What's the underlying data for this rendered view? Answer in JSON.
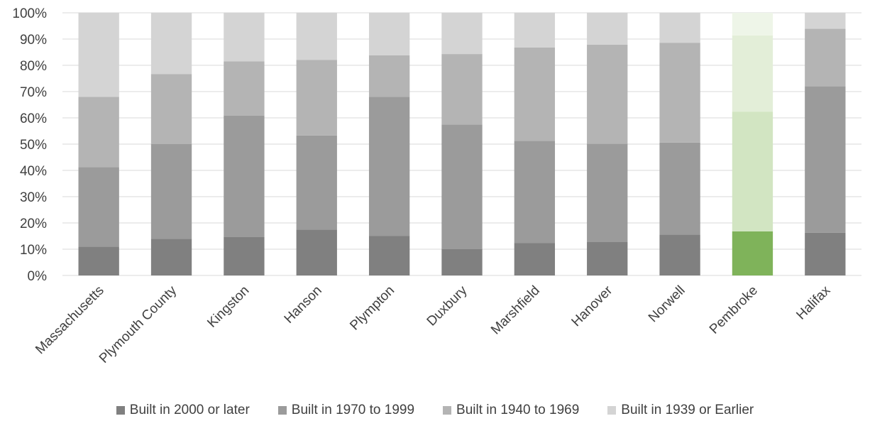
{
  "chart_data": {
    "type": "bar",
    "stacked": true,
    "percent": true,
    "title": "",
    "xlabel": "",
    "ylabel": "",
    "ylim": [
      0,
      100
    ],
    "yticks": [
      "0%",
      "10%",
      "20%",
      "30%",
      "40%",
      "50%",
      "60%",
      "70%",
      "80%",
      "90%",
      "100%"
    ],
    "categories": [
      "Massachusetts",
      "Plymouth County",
      "Kingston",
      "Hanson",
      "Plympton",
      "Duxbury",
      "Marshfield",
      "Hanover",
      "Norwell",
      "Pembroke",
      "Halifax"
    ],
    "series": [
      {
        "name": "Built in 2000 or later",
        "color": "#808080",
        "values": [
          11,
          14,
          14.6,
          17.5,
          15,
          10,
          12.4,
          12.7,
          15.6,
          16.8,
          16.3
        ]
      },
      {
        "name": "Built in 1970 to 1999",
        "color": "#9b9b9b",
        "values": [
          30.2,
          36,
          46.3,
          35.8,
          53,
          47.5,
          38.8,
          37.5,
          35,
          45.5,
          55.7
        ]
      },
      {
        "name": "Built in 1940 to 1969",
        "color": "#b4b4b4",
        "values": [
          26.8,
          26.7,
          20.6,
          28.8,
          15.8,
          26.8,
          35.6,
          37.7,
          38,
          29.1,
          21.9
        ]
      },
      {
        "name": "Built in 1939 or Earlier",
        "color": "#d4d4d4",
        "values": [
          32,
          23.3,
          18.5,
          17.9,
          16.2,
          15.7,
          13.2,
          12.1,
          11.4,
          8.6,
          6.1
        ]
      }
    ],
    "highlight": {
      "category": "Pembroke",
      "colors": [
        "#7fb35a",
        "#d2e5c2",
        "#e3eed8",
        "#eef5e8"
      ]
    },
    "grid": true,
    "legend_position": "bottom"
  }
}
